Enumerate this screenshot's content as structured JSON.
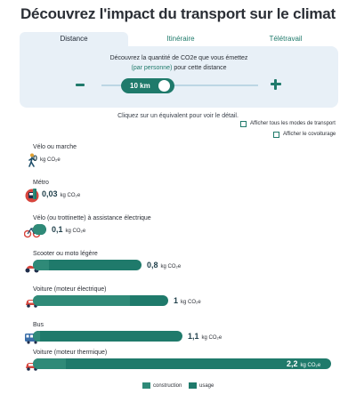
{
  "title": "Découvrez l'impact du transport sur le climat",
  "tabs": [
    {
      "label": "Distance",
      "active": true
    },
    {
      "label": "Itinéraire",
      "active": false
    },
    {
      "label": "Télétravail",
      "active": false
    }
  ],
  "panel": {
    "line1": "Découvrez la quantité de CO2e que vous émettez",
    "line2_link": "(par personne)",
    "line2_rest": " pour cette distance",
    "distance_value": "10 km"
  },
  "hint": "Cliquez sur un équivalent pour voir le détail.",
  "options": [
    {
      "label": "Afficher tous les modes de transport",
      "checked": false
    },
    {
      "label": "Afficher le covoiturage",
      "checked": false
    }
  ],
  "unit": "kg CO₂e",
  "colors": {
    "teal": "#1f7a6b",
    "teal_light": "#2f8a78",
    "panel_bg": "#e8f0f7",
    "icon_red": "#d6453d"
  },
  "modes": [
    {
      "label": "Vélo ou marche",
      "value": "0",
      "ratio": 0,
      "construction_share": 0,
      "icon": "walking-person-icon"
    },
    {
      "label": "Métro",
      "value": "0,03",
      "ratio": 0.014,
      "construction_share": 0.5,
      "icon": "metro-icon"
    },
    {
      "label": "Vélo (ou trottinette) à assistance électrique",
      "value": "0,1",
      "ratio": 0.045,
      "construction_share": 0.9,
      "icon": "electric-bike-icon"
    },
    {
      "label": "Scooter ou moto légère",
      "value": "0,8",
      "ratio": 0.364,
      "construction_share": 0.15,
      "icon": "scooter-icon"
    },
    {
      "label": "Voiture (moteur électrique)",
      "value": "1",
      "ratio": 0.455,
      "construction_share": 0.72,
      "icon": "car-icon"
    },
    {
      "label": "Bus",
      "value": "1,1",
      "ratio": 0.5,
      "construction_share": 0.05,
      "icon": "bus-icon"
    },
    {
      "label": "Voiture (moteur thermique)",
      "value": "2,2",
      "ratio": 1.0,
      "construction_share": 0.11,
      "icon": "car-icon"
    }
  ],
  "legend": {
    "construction": "construction",
    "usage": "usage"
  }
}
